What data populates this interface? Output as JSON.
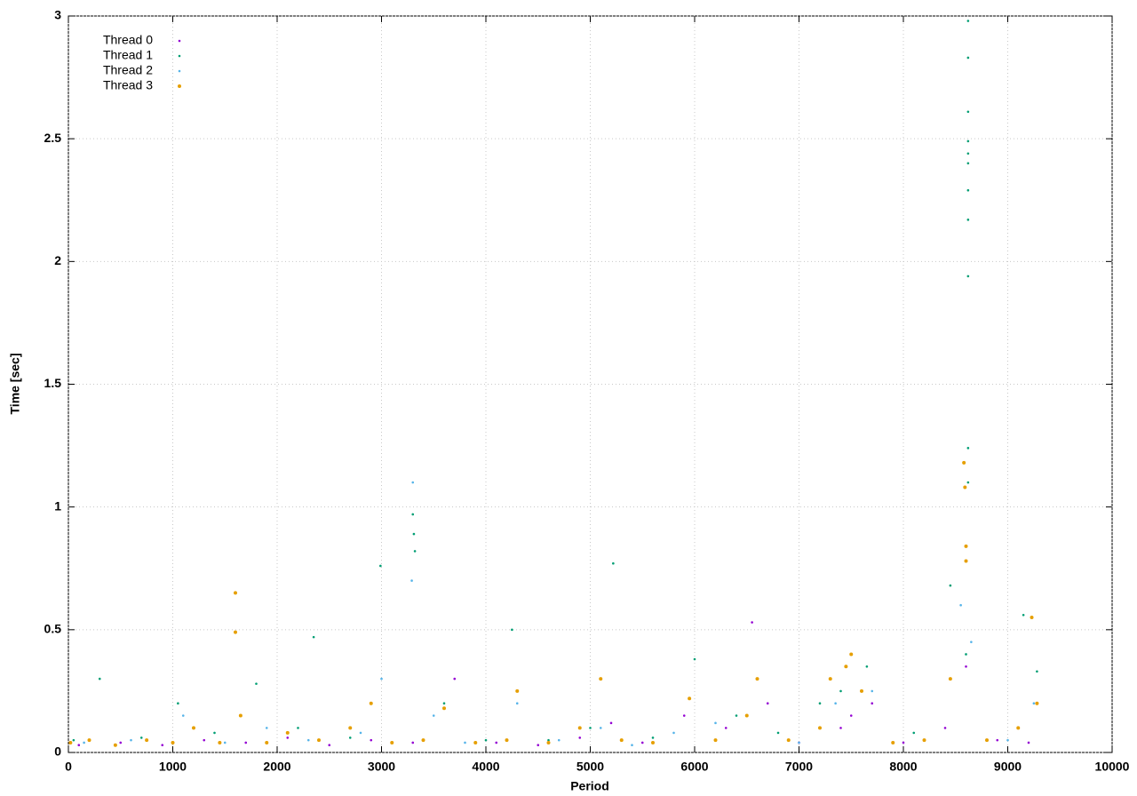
{
  "chart_data": {
    "type": "scatter",
    "xlabel": "Period",
    "ylabel": "Time [sec]",
    "xlim": [
      0,
      10000
    ],
    "ylim": [
      0,
      3
    ],
    "xticks": [
      0,
      1000,
      2000,
      3000,
      4000,
      5000,
      6000,
      7000,
      8000,
      9000,
      10000
    ],
    "yticks": [
      0,
      0.5,
      1,
      1.5,
      2,
      2.5,
      3
    ],
    "grid": true,
    "legend": "top-left",
    "series": [
      {
        "name": "Thread 0",
        "color": "#9400d3",
        "x": [
          100,
          500,
          900,
          1300,
          1700,
          2100,
          2500,
          2900,
          3300,
          3700,
          4100,
          4500,
          4900,
          5200,
          5500,
          5900,
          6300,
          6550,
          6700,
          7000,
          7400,
          7500,
          7700,
          8000,
          8400,
          8600,
          8900,
          9200
        ],
        "values": [
          0.03,
          0.04,
          0.03,
          0.05,
          0.04,
          0.06,
          0.03,
          0.05,
          0.04,
          0.3,
          0.04,
          0.03,
          0.06,
          0.12,
          0.04,
          0.15,
          0.1,
          0.53,
          0.2,
          0.04,
          0.1,
          0.15,
          0.2,
          0.04,
          0.1,
          0.35,
          0.05,
          0.04
        ]
      },
      {
        "name": "Thread 1",
        "color": "#009e73",
        "x": [
          50,
          300,
          700,
          1050,
          1400,
          1800,
          2200,
          2350,
          2700,
          2990,
          3300,
          3310,
          3320,
          3600,
          4000,
          4250,
          4600,
          5000,
          5220,
          5600,
          6000,
          6400,
          6800,
          7200,
          7300,
          7400,
          7650,
          8100,
          8450,
          8600,
          8620,
          8620,
          8620,
          8620,
          8620,
          8620,
          8620,
          8620,
          8620,
          8620,
          8620,
          9150,
          9280
        ],
        "values": [
          0.05,
          0.3,
          0.06,
          0.2,
          0.08,
          0.28,
          0.1,
          0.47,
          0.06,
          0.76,
          0.97,
          0.89,
          0.82,
          0.2,
          0.05,
          0.5,
          0.05,
          0.1,
          0.77,
          0.06,
          0.38,
          0.15,
          0.08,
          0.2,
          0.3,
          0.25,
          0.35,
          0.08,
          0.68,
          0.4,
          2.98,
          2.83,
          2.61,
          2.49,
          2.44,
          2.4,
          2.29,
          2.17,
          1.94,
          1.24,
          1.1,
          0.56,
          0.33
        ]
      },
      {
        "name": "Thread 2",
        "color": "#56b4e9",
        "x": [
          150,
          600,
          1100,
          1500,
          1900,
          2300,
          2800,
          3000,
          3290,
          3300,
          3500,
          3800,
          4300,
          4700,
          5100,
          5400,
          5800,
          6200,
          6600,
          7000,
          7350,
          7700,
          8200,
          8550,
          8650,
          9000,
          9250
        ],
        "values": [
          0.04,
          0.05,
          0.15,
          0.04,
          0.1,
          0.05,
          0.08,
          0.3,
          0.7,
          1.1,
          0.15,
          0.04,
          0.2,
          0.05,
          0.1,
          0.03,
          0.08,
          0.12,
          0.3,
          0.04,
          0.2,
          0.25,
          0.05,
          0.6,
          0.45,
          0.05,
          0.2
        ]
      },
      {
        "name": "Thread 3",
        "color": "#e69f00",
        "x": [
          20,
          200,
          450,
          750,
          1000,
          1200,
          1450,
          1600,
          1600,
          1650,
          1900,
          2100,
          2400,
          2700,
          2900,
          3100,
          3400,
          3600,
          3900,
          4200,
          4300,
          4600,
          4900,
          5100,
          5300,
          5600,
          5950,
          6200,
          6500,
          6600,
          6900,
          7200,
          7300,
          7450,
          7500,
          7600,
          7900,
          8200,
          8450,
          8580,
          8590,
          8600,
          8600,
          8800,
          9100,
          9230,
          9280
        ],
        "values": [
          0.04,
          0.05,
          0.03,
          0.05,
          0.04,
          0.1,
          0.04,
          0.65,
          0.49,
          0.15,
          0.04,
          0.08,
          0.05,
          0.1,
          0.2,
          0.04,
          0.05,
          0.18,
          0.04,
          0.05,
          0.25,
          0.04,
          0.1,
          0.3,
          0.05,
          0.04,
          0.22,
          0.05,
          0.15,
          0.3,
          0.05,
          0.1,
          0.3,
          0.35,
          0.4,
          0.25,
          0.04,
          0.05,
          0.3,
          1.18,
          1.08,
          0.84,
          0.78,
          0.05,
          0.1,
          0.55,
          0.2
        ]
      }
    ]
  }
}
